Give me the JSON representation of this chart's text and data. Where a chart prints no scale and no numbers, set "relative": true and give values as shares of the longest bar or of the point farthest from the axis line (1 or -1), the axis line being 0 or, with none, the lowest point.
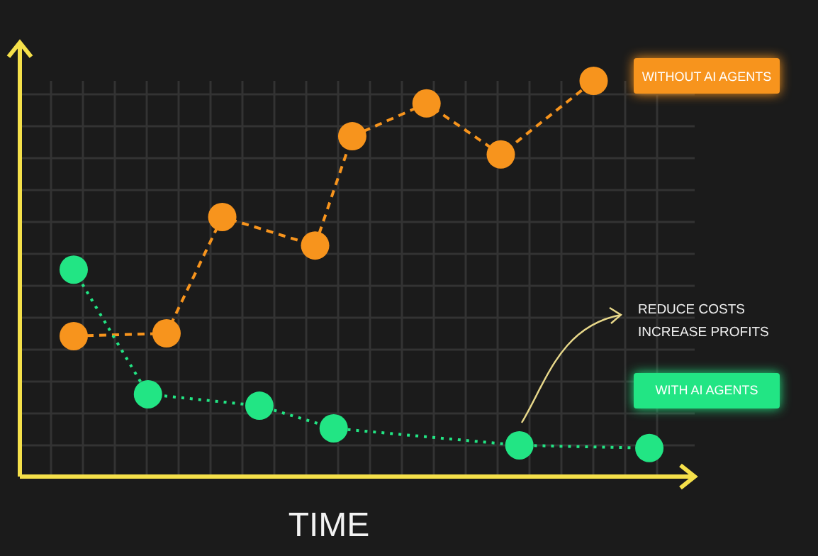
{
  "chart_data": {
    "type": "line",
    "relative": true,
    "xlabel": "TIME",
    "grid": true,
    "marker": "circle",
    "annotations": [
      "REDUCE COSTS",
      "INCREASE PROFITS"
    ],
    "categories": [
      null,
      null,
      null,
      null,
      null,
      null,
      null,
      null,
      null,
      null,
      null,
      null,
      null,
      null,
      null,
      null,
      null,
      null,
      null,
      null,
      null,
      null,
      null,
      null,
      null,
      null,
      null,
      null,
      null,
      null,
      null,
      null
    ],
    "series": [
      {
        "name": "WITHOUT AI AGENTS",
        "color": "#f7941d",
        "line_style": "dashed",
        "values": [
          0.355,
          null,
          null,
          null,
          null,
          0.362,
          null,
          null,
          0.656,
          null,
          null,
          null,
          null,
          0.584,
          null,
          0.86,
          null,
          null,
          null,
          0.943,
          null,
          null,
          null,
          0.814,
          null,
          null,
          null,
          null,
          1,
          null,
          null,
          null
        ]
      },
      {
        "name": "WITH AI AGENTS",
        "color": "#22e584",
        "line_style": "dotted",
        "values": [
          0.523,
          null,
          null,
          null,
          0.208,
          null,
          null,
          null,
          null,
          null,
          0.179,
          null,
          null,
          null,
          0.122,
          null,
          null,
          null,
          null,
          null,
          null,
          null,
          null,
          null,
          0.079,
          null,
          null,
          null,
          null,
          null,
          null,
          0.072
        ]
      }
    ]
  }
}
